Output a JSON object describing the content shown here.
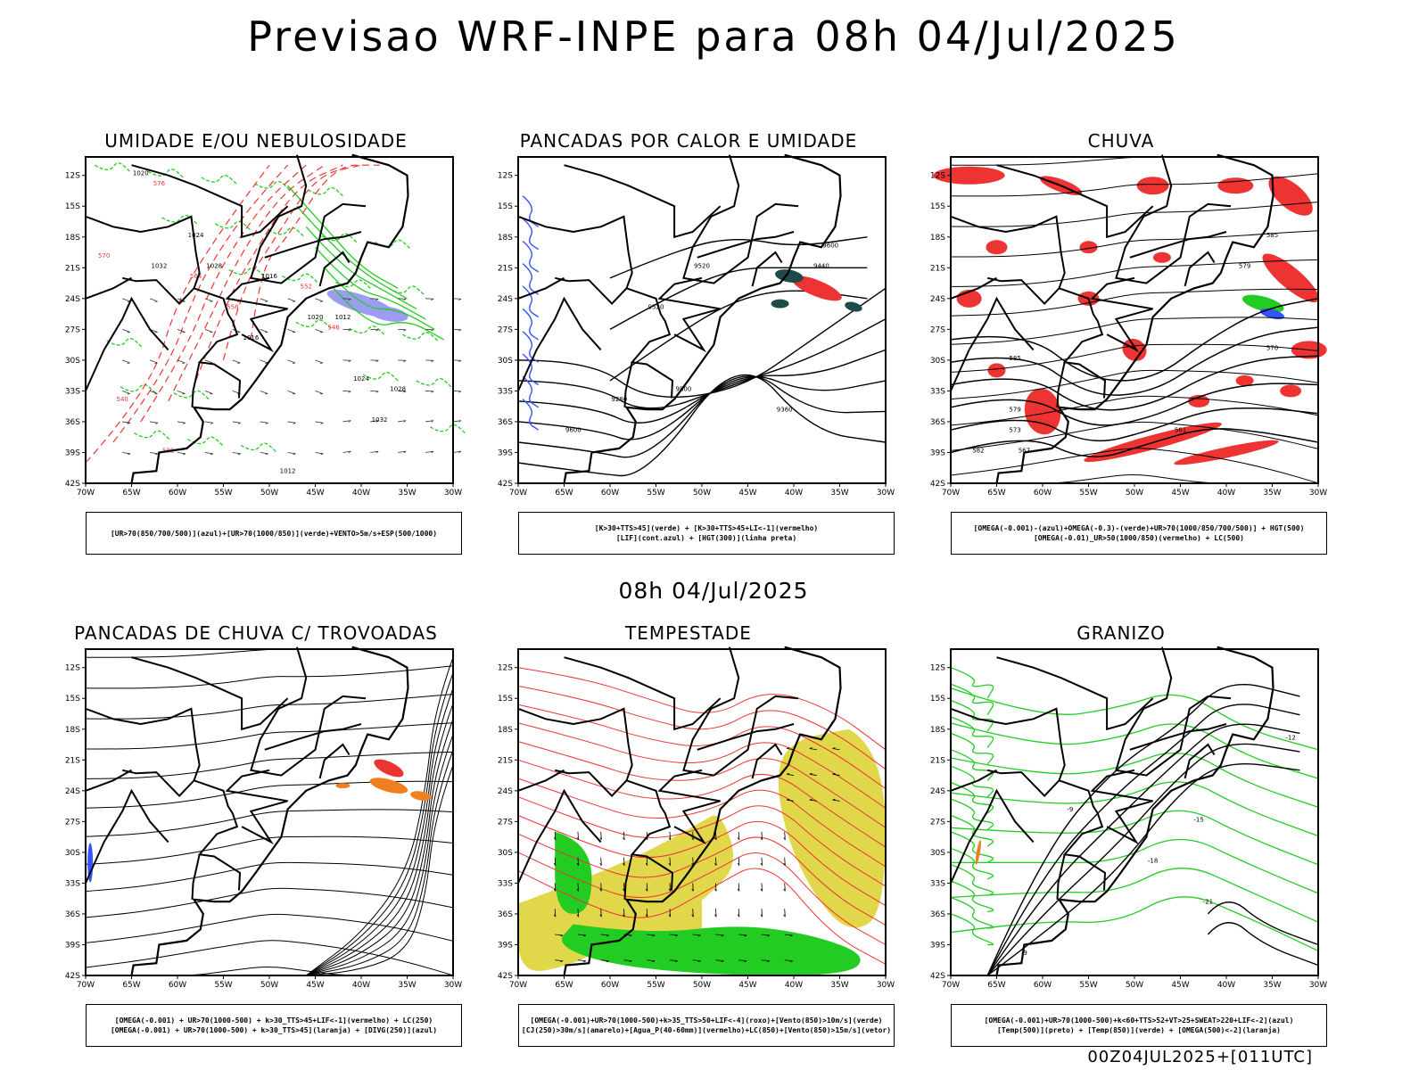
{
  "page": {
    "title": "Previsao WRF-INPE  para 08h 04/Jul/2025",
    "middle_title": "08h 04/Jul/2025",
    "footer": "00Z04JUL2025+[011UTC]"
  },
  "axes": {
    "lat_ticks": [
      "12S",
      "15S",
      "18S",
      "21S",
      "24S",
      "27S",
      "30S",
      "33S",
      "36S",
      "39S",
      "42S"
    ],
    "lon_ticks": [
      "70W",
      "65W",
      "60W",
      "55W",
      "50W",
      "45W",
      "40W",
      "35W",
      "30W"
    ]
  },
  "colors": {
    "coast": "#000000",
    "blue": "#3355ff",
    "green": "#22cc22",
    "red": "#ee3333",
    "dark_teal": "#1e4a4a",
    "orange": "#f07f20",
    "yellow": "#e0d84a",
    "lavender": "#9c9cf2"
  },
  "chart_data": [
    {
      "type": "map",
      "title": "UMIDADE E/OU NEBULOSIDADE",
      "legend": [
        "[UR>70(850/700/500)](azul)+[UR>70(1000/850)](verde)+VENTO>5m/s+ESP(500/1000)"
      ],
      "contour_labels_black": [
        "1020",
        "1024",
        "1028",
        "1032",
        "1016",
        "1012"
      ],
      "contour_labels_red": [
        "576",
        "570",
        "564",
        "558",
        "552",
        "546",
        "540",
        "582"
      ]
    },
    {
      "type": "map",
      "title": "PANCADAS POR CALOR E UMIDADE",
      "legend": [
        "[K>30+TTS>45](verde) + [K>30+TTS>45+LI<-1](vermelho)",
        "[LIF](cont.azul) + [HGT(300)](linha preta)"
      ],
      "contour_labels_black": [
        "9600",
        "9520",
        "9440",
        "9360",
        "9280",
        "9800"
      ]
    },
    {
      "type": "map",
      "title": "CHUVA",
      "legend": [
        "[OMEGA(-0.001)-(azul)+OMEGA(-0.3)-(verde)+UR>70(1000/850/700/500)] + HGT(500)",
        "[OMEGA(-0.01)_UR>50(1000/850)(vermelho) + LC(500)"
      ],
      "contour_labels_black": [
        "585",
        "579",
        "573",
        "567",
        "570",
        "561",
        "582"
      ]
    },
    {
      "type": "map",
      "title": "PANCADAS DE CHUVA C/ TROVOADAS",
      "legend": [
        "[OMEGA(-0.001) + UR>70(1000-500) + k>30_TTS>45+LIF<-1](vermelho) + LC(250)",
        "[OMEGA(-0.001) + UR>70(1000-500) + k>30_TTS>45](laranja) + [DIVG(250)](azul)"
      ]
    },
    {
      "type": "map",
      "title": "TEMPESTADE",
      "legend": [
        "[OMEGA(-0.001)+UR>70(1000-500)+k>35_TTS>50+LIF<-4](roxo)+[Vento(850)>10m/s](verde)",
        "[CJ(250)>30m/s](amarelo)+[Agua_P(40-60mm)](vermelho)+LC(850)+[Vento(850)>15m/s](vetor)"
      ]
    },
    {
      "type": "map",
      "title": "GRANIZO",
      "legend": [
        "[OMEGA(-0.001)+UR>70(1000-500)+k<60+TTS>52+VT>25+SWEAT>220+LIF<-2](azul)",
        "[Temp(500)](preto) + [Temp(850)](verde) + [OMEGA(500)<-2](laranja)"
      ],
      "contour_labels_black": [
        "-9",
        "-12",
        "-15",
        "-18",
        "-21"
      ]
    }
  ]
}
